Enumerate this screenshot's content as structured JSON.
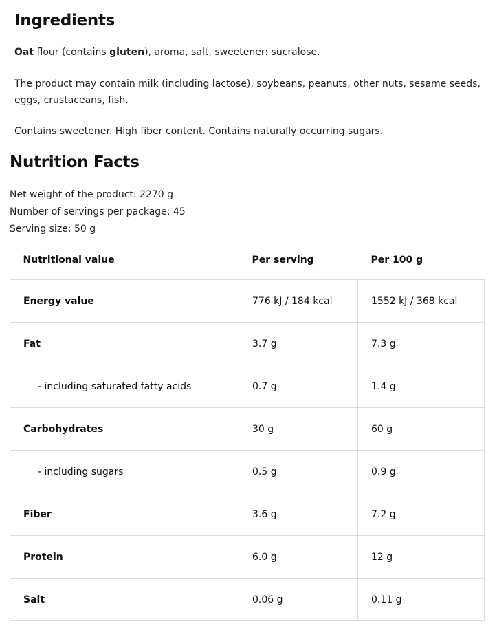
{
  "ingredients": {
    "title": "Ingredients",
    "line1": {
      "b1": "Oat",
      "t1": " flour (contains ",
      "b2": "gluten",
      "t2": "), aroma, salt, sweetener: sucralose."
    },
    "allergens": "The product may contain milk (including lactose), soybeans, peanuts, other nuts, sesame seeds, eggs, crustaceans, fish.",
    "notes": "Contains sweetener. High fiber content. Contains naturally occurring sugars."
  },
  "nutrition": {
    "title": "Nutrition Facts",
    "info": [
      "Net weight of the product: 2270 g",
      "Number of servings per package: 45",
      "Serving size: 50 g"
    ],
    "headers": [
      "Nutritional value",
      "Per serving",
      "Per 100 g"
    ],
    "rows": [
      {
        "name": "Energy value",
        "serving": "776 kJ / 184 kcal",
        "per100": "1552 kJ / 368 kcal",
        "sub": false
      },
      {
        "name": "Fat",
        "serving": "3.7 g",
        "per100": "7.3 g",
        "sub": false
      },
      {
        "name": "- including saturated fatty acids",
        "serving": "0.7 g",
        "per100": "1.4 g",
        "sub": true
      },
      {
        "name": "Carbohydrates",
        "serving": "30 g",
        "per100": "60 g",
        "sub": false
      },
      {
        "name": "- including sugars",
        "serving": "0.5 g",
        "per100": "0.9 g",
        "sub": true
      },
      {
        "name": "Fiber",
        "serving": "3.6 g",
        "per100": "7.2 g",
        "sub": false
      },
      {
        "name": "Protein",
        "serving": "6.0 g",
        "per100": "12 g",
        "sub": false
      },
      {
        "name": "Salt",
        "serving": "0.06 g",
        "per100": "0.11 g",
        "sub": false
      }
    ]
  }
}
